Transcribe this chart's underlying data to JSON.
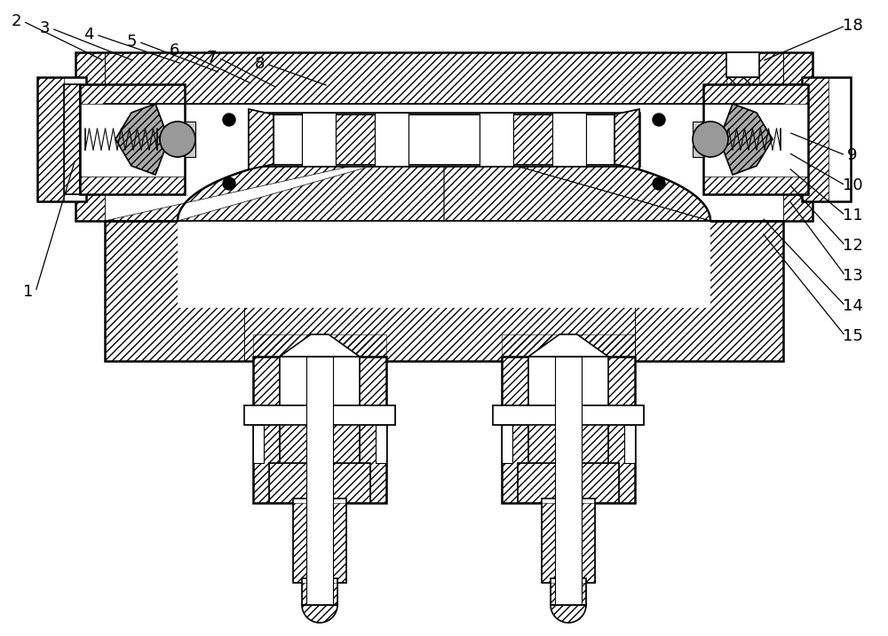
{
  "background_color": "#ffffff",
  "line_color": "#000000",
  "label_color": "#000000",
  "label_fontsize": 13,
  "figsize": [
    10.0,
    7.17
  ],
  "dpi": 100,
  "leader_data": [
    [
      "2",
      18,
      693,
      118,
      648
    ],
    [
      "3",
      50,
      685,
      152,
      648
    ],
    [
      "4",
      100,
      678,
      205,
      645
    ],
    [
      "5",
      148,
      670,
      248,
      635
    ],
    [
      "6",
      196,
      660,
      285,
      622
    ],
    [
      "7",
      238,
      652,
      312,
      618
    ],
    [
      "8",
      292,
      645,
      370,
      620
    ],
    [
      "18",
      960,
      688,
      858,
      648
    ],
    [
      "9",
      960,
      542,
      888,
      568
    ],
    [
      "10",
      960,
      508,
      888,
      545
    ],
    [
      "11",
      960,
      474,
      888,
      528
    ],
    [
      "12",
      960,
      440,
      888,
      510
    ],
    [
      "13",
      960,
      406,
      888,
      492
    ],
    [
      "14",
      960,
      372,
      858,
      472
    ],
    [
      "15",
      960,
      338,
      858,
      455
    ],
    [
      "1",
      32,
      388,
      85,
      538
    ]
  ]
}
